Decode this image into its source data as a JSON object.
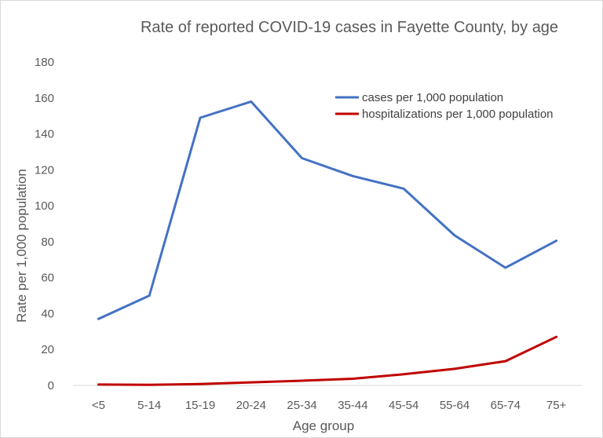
{
  "chart_data": {
    "type": "line",
    "title": "Rate of reported COVID-19 cases in Fayette County, by age",
    "xlabel": "Age group",
    "ylabel": "Rate per 1,000 population",
    "categories": [
      "<5",
      "5-14",
      "15-19",
      "20-24",
      "25-34",
      "35-44",
      "45-54",
      "55-64",
      "65-74",
      "75+"
    ],
    "ylim": [
      0,
      180
    ],
    "yticks": [
      0,
      20,
      40,
      60,
      80,
      100,
      120,
      140,
      160,
      180
    ],
    "grid": false,
    "legend_position": "top-right",
    "series": [
      {
        "name": "cases per 1,000 population",
        "color": "#4472c4",
        "values": [
          37,
          50,
          149,
          158,
          126.5,
          116.5,
          109.5,
          83.5,
          65.5,
          80.5
        ]
      },
      {
        "name": "hospitalizations per 1,000 population",
        "color": "#c00000",
        "values": [
          0.5,
          0.3,
          0.8,
          1.7,
          2.6,
          3.7,
          6.2,
          9.2,
          13.5,
          27
        ]
      }
    ]
  }
}
